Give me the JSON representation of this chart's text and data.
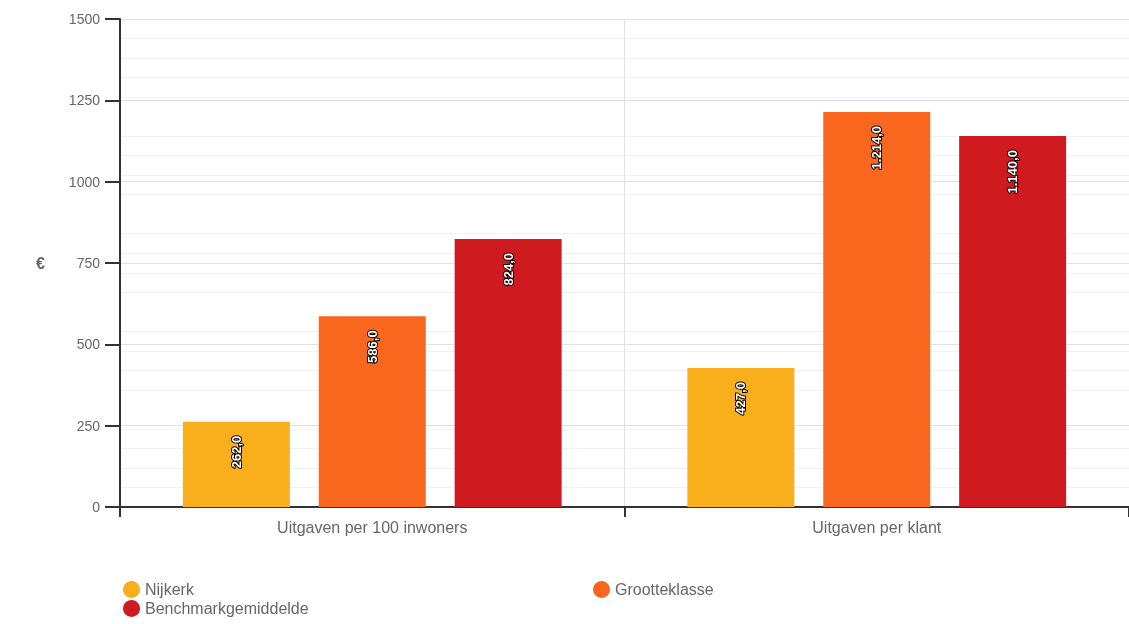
{
  "chart_data": {
    "type": "bar",
    "ylabel": "€",
    "categories": [
      "Uitgaven per 100 inwoners",
      "Uitgaven per klant"
    ],
    "series": [
      {
        "name": "Nijkerk",
        "color": "#f9ae1b",
        "values": [
          262,
          427
        ],
        "value_labels": [
          "262,0",
          "427,0"
        ]
      },
      {
        "name": "Grootteklasse",
        "color": "#f9671f",
        "values": [
          586,
          1214
        ],
        "value_labels": [
          "586,0",
          "1.214,0"
        ]
      },
      {
        "name": "Benchmarkgemiddelde",
        "color": "#cf1a20",
        "values": [
          824,
          1140
        ],
        "value_labels": [
          "824,0",
          "1.140,0"
        ]
      }
    ],
    "ylim": [
      0,
      1500
    ],
    "yticks": [
      0,
      250,
      500,
      750,
      1000,
      1250,
      1500
    ],
    "grid": true,
    "legend": "bottom left"
  }
}
